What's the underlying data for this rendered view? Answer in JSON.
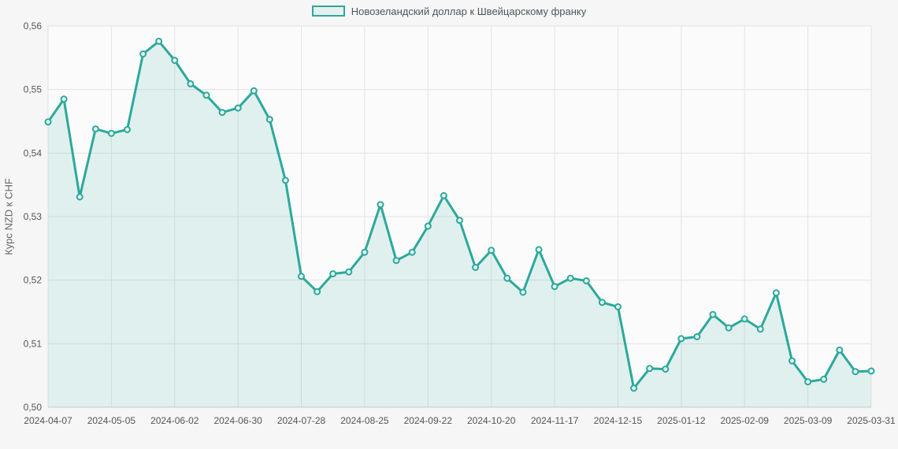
{
  "legend": {
    "label": "Новозеландский доллар к Швейцарскому франку"
  },
  "chart_data": {
    "type": "area",
    "title": "",
    "xlabel": "",
    "ylabel": "Курс NZD к CHF",
    "ylim": [
      0.5,
      0.56
    ],
    "y_tick_step": 0.01,
    "y_tick_labels": [
      "0,50",
      "0,51",
      "0,52",
      "0,53",
      "0,54",
      "0,55",
      "0,56"
    ],
    "x_tick_indices": [
      0,
      4,
      8,
      12,
      16,
      20,
      24,
      28,
      32,
      36,
      40,
      44,
      48,
      52
    ],
    "x_tick_labels": [
      "2024-04-07",
      "2024-05-05",
      "2024-06-02",
      "2024-06-30",
      "2024-07-28",
      "2024-08-25",
      "2024-09-22",
      "2024-10-20",
      "2024-11-17",
      "2024-12-15",
      "2025-01-12",
      "2025-02-09",
      "2025-03-09",
      "2025-03-31"
    ],
    "grid": true,
    "legend_position": "top-center",
    "series": [
      {
        "name": "Новозеландский доллар к Швейцарскому франку",
        "x": [
          "2024-04-07",
          "2024-04-14",
          "2024-04-21",
          "2024-04-28",
          "2024-05-05",
          "2024-05-12",
          "2024-05-19",
          "2024-05-26",
          "2024-06-02",
          "2024-06-09",
          "2024-06-16",
          "2024-06-23",
          "2024-06-30",
          "2024-07-07",
          "2024-07-14",
          "2024-07-21",
          "2024-07-28",
          "2024-08-04",
          "2024-08-11",
          "2024-08-18",
          "2024-08-25",
          "2024-09-01",
          "2024-09-08",
          "2024-09-15",
          "2024-09-22",
          "2024-09-29",
          "2024-10-06",
          "2024-10-13",
          "2024-10-20",
          "2024-10-27",
          "2024-11-03",
          "2024-11-10",
          "2024-11-17",
          "2024-11-24",
          "2024-12-01",
          "2024-12-08",
          "2024-12-15",
          "2024-12-22",
          "2024-12-29",
          "2025-01-05",
          "2025-01-12",
          "2025-01-19",
          "2025-01-26",
          "2025-02-02",
          "2025-02-09",
          "2025-02-16",
          "2025-02-23",
          "2025-03-02",
          "2025-03-09",
          "2025-03-16",
          "2025-03-23",
          "2025-03-30",
          "2025-03-31"
        ],
        "values": [
          0.5449,
          0.5485,
          0.5331,
          0.5438,
          0.5431,
          0.5437,
          0.5556,
          0.5576,
          0.5546,
          0.5509,
          0.5491,
          0.5464,
          0.5471,
          0.5498,
          0.5453,
          0.5357,
          0.5206,
          0.5182,
          0.521,
          0.5213,
          0.5244,
          0.5319,
          0.5231,
          0.5244,
          0.5285,
          0.5333,
          0.5294,
          0.522,
          0.5247,
          0.5203,
          0.5181,
          0.5248,
          0.519,
          0.5203,
          0.5199,
          0.5165,
          0.5158,
          0.503,
          0.5061,
          0.506,
          0.5108,
          0.5111,
          0.5146,
          0.5125,
          0.5139,
          0.5123,
          0.518,
          0.5073,
          0.504,
          0.5044,
          0.509,
          0.5056,
          0.5057
        ]
      }
    ],
    "colors": {
      "line": "#2BA99B",
      "area_fill": "rgba(43,169,155,0.13)",
      "marker_fill": "#E7F3F1",
      "grid": "#E3E3E3",
      "axis_line": "#CCCCCC",
      "tick_text": "#555555",
      "axis_title_text": "#666666",
      "legend_text": "#4C565C",
      "legend_swatch_fill": "#E7EFEE",
      "plot_bg": "#FBFBFB",
      "page_bg": "#F6F6F6"
    }
  }
}
